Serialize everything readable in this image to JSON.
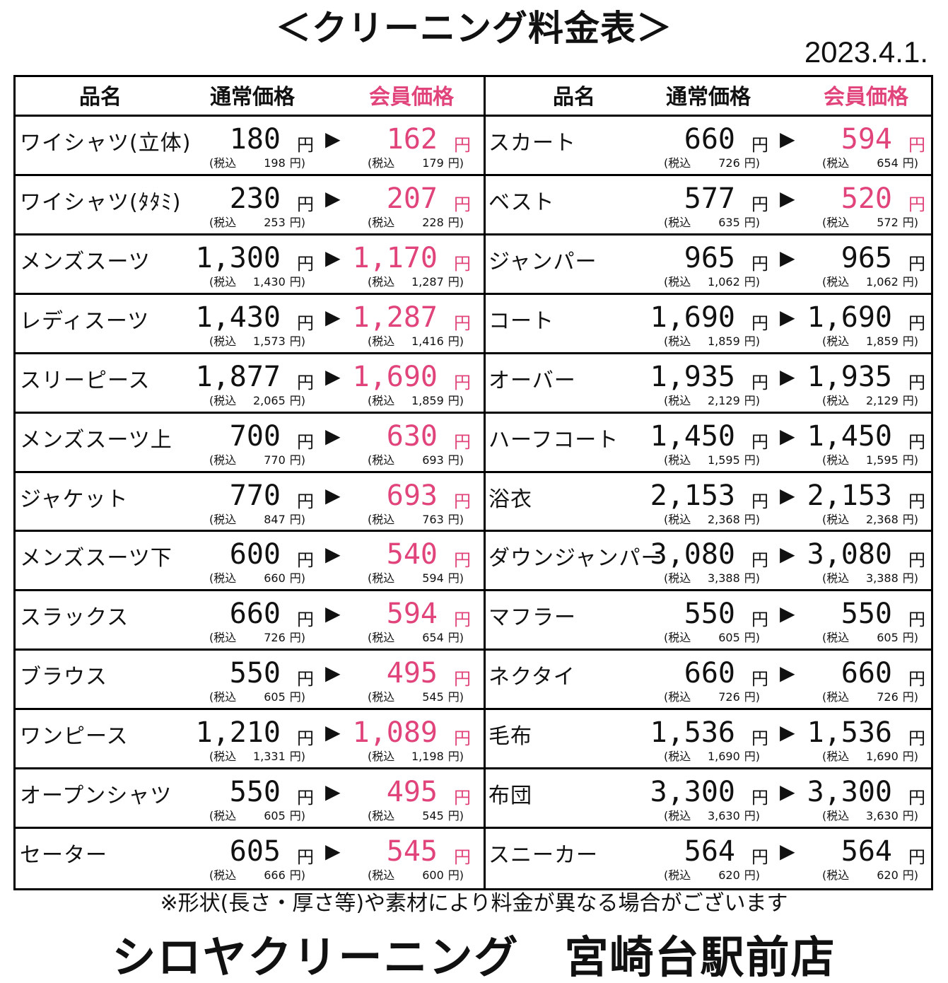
{
  "title": "＜クリーニング料金表＞",
  "date": "2023.4.1.",
  "headers": {
    "name": "品名",
    "regular": "通常価格",
    "member": "会員価格"
  },
  "labels": {
    "yen": "円",
    "arrow": "▶",
    "tax_prefix": "(税込",
    "tax_suffix": "円)"
  },
  "left_rows": [
    {
      "name": "ワイシャツ(立体)",
      "regular": "180",
      "regular_tax": "198",
      "member": "162",
      "member_tax": "179",
      "member_pink": true
    },
    {
      "name": "ワイシャツ(ﾀﾀﾐ)",
      "regular": "230",
      "regular_tax": "253",
      "member": "207",
      "member_tax": "228",
      "member_pink": true
    },
    {
      "name": "メンズスーツ",
      "regular": "1,300",
      "regular_tax": "1,430",
      "member": "1,170",
      "member_tax": "1,287",
      "member_pink": true
    },
    {
      "name": "レディスーツ",
      "regular": "1,430",
      "regular_tax": "1,573",
      "member": "1,287",
      "member_tax": "1,416",
      "member_pink": true
    },
    {
      "name": "スリーピース",
      "regular": "1,877",
      "regular_tax": "2,065",
      "member": "1,690",
      "member_tax": "1,859",
      "member_pink": true
    },
    {
      "name": "メンズスーツ上",
      "regular": "700",
      "regular_tax": "770",
      "member": "630",
      "member_tax": "693",
      "member_pink": true
    },
    {
      "name": "ジャケット",
      "regular": "770",
      "regular_tax": "847",
      "member": "693",
      "member_tax": "763",
      "member_pink": true
    },
    {
      "name": "メンズスーツ下",
      "regular": "600",
      "regular_tax": "660",
      "member": "540",
      "member_tax": "594",
      "member_pink": true
    },
    {
      "name": "スラックス",
      "regular": "660",
      "regular_tax": "726",
      "member": "594",
      "member_tax": "654",
      "member_pink": true
    },
    {
      "name": "ブラウス",
      "regular": "550",
      "regular_tax": "605",
      "member": "495",
      "member_tax": "545",
      "member_pink": true
    },
    {
      "name": "ワンピース",
      "regular": "1,210",
      "regular_tax": "1,331",
      "member": "1,089",
      "member_tax": "1,198",
      "member_pink": true
    },
    {
      "name": "オープンシャツ",
      "regular": "550",
      "regular_tax": "605",
      "member": "495",
      "member_tax": "545",
      "member_pink": true
    },
    {
      "name": "セーター",
      "regular": "605",
      "regular_tax": "666",
      "member": "545",
      "member_tax": "600",
      "member_pink": true
    }
  ],
  "right_rows": [
    {
      "name": "スカート",
      "regular": "660",
      "regular_tax": "726",
      "member": "594",
      "member_tax": "654",
      "member_pink": true
    },
    {
      "name": "ベスト",
      "regular": "577",
      "regular_tax": "635",
      "member": "520",
      "member_tax": "572",
      "member_pink": true
    },
    {
      "name": "ジャンパー",
      "regular": "965",
      "regular_tax": "1,062",
      "member": "965",
      "member_tax": "1,062",
      "member_pink": false
    },
    {
      "name": "コート",
      "regular": "1,690",
      "regular_tax": "1,859",
      "member": "1,690",
      "member_tax": "1,859",
      "member_pink": false
    },
    {
      "name": "オーバー",
      "regular": "1,935",
      "regular_tax": "2,129",
      "member": "1,935",
      "member_tax": "2,129",
      "member_pink": false
    },
    {
      "name": "ハーフコート",
      "regular": "1,450",
      "regular_tax": "1,595",
      "member": "1,450",
      "member_tax": "1,595",
      "member_pink": false
    },
    {
      "name": "浴衣",
      "regular": "2,153",
      "regular_tax": "2,368",
      "member": "2,153",
      "member_tax": "2,368",
      "member_pink": false
    },
    {
      "name": "ダウンジャンパー",
      "regular": "3,080",
      "regular_tax": "3,388",
      "member": "3,080",
      "member_tax": "3,388",
      "member_pink": false
    },
    {
      "name": "マフラー",
      "regular": "550",
      "regular_tax": "605",
      "member": "550",
      "member_tax": "605",
      "member_pink": false
    },
    {
      "name": "ネクタイ",
      "regular": "660",
      "regular_tax": "726",
      "member": "660",
      "member_tax": "726",
      "member_pink": false
    },
    {
      "name": "毛布",
      "regular": "1,536",
      "regular_tax": "1,690",
      "member": "1,536",
      "member_tax": "1,690",
      "member_pink": false
    },
    {
      "name": "布団",
      "regular": "3,300",
      "regular_tax": "3,630",
      "member": "3,300",
      "member_tax": "3,630",
      "member_pink": false
    },
    {
      "name": "スニーカー",
      "regular": "564",
      "regular_tax": "620",
      "member": "564",
      "member_tax": "620",
      "member_pink": false
    }
  ],
  "note": "※形状(長さ・厚さ等)や素材により料金が異なる場合がございます",
  "shop": "シロヤクリーニング　宮崎台駅前店",
  "colors": {
    "member_accent": "#e0447a",
    "text": "#111111"
  }
}
